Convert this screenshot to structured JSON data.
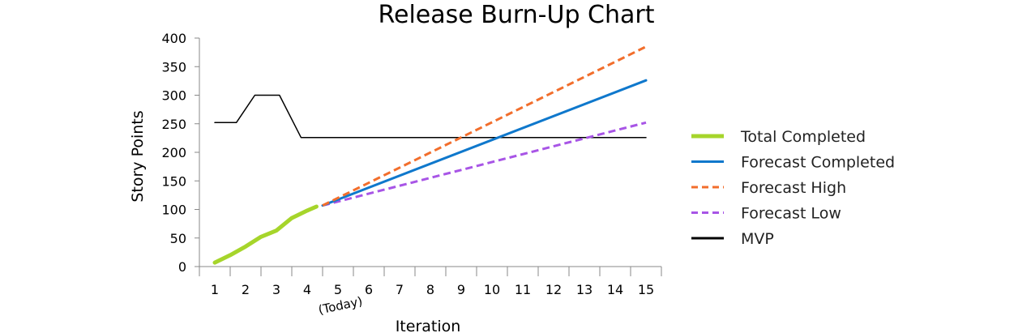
{
  "chart_data": {
    "type": "line",
    "title": "Release Burn-Up Chart",
    "xlabel": "Iteration",
    "ylabel": "Story Points",
    "x": [
      1,
      2,
      3,
      4,
      5,
      6,
      7,
      8,
      9,
      10,
      11,
      12,
      13,
      14,
      15
    ],
    "xlim": [
      0.5,
      15.5
    ],
    "ylim": [
      0,
      400
    ],
    "yticks": [
      0,
      50,
      100,
      150,
      200,
      250,
      300,
      350,
      400
    ],
    "grid": false,
    "legend_position": "right",
    "annotations": [
      {
        "x": 5,
        "text": "(Today)"
      }
    ],
    "series": [
      {
        "name": "Total Completed",
        "style": "solid-thick",
        "color": "#a6d52b",
        "points": [
          [
            1,
            7
          ],
          [
            1.5,
            20
          ],
          [
            2,
            35
          ],
          [
            2.5,
            52
          ],
          [
            3,
            63
          ],
          [
            3.5,
            85
          ],
          [
            4,
            98
          ],
          [
            4.3,
            105
          ]
        ]
      },
      {
        "name": "Forecast Completed",
        "style": "solid",
        "color": "#0f78cc",
        "points": [
          [
            4.5,
            107
          ],
          [
            15,
            326
          ]
        ]
      },
      {
        "name": "Forecast High",
        "style": "dashed",
        "color": "#f26e2c",
        "points": [
          [
            4.5,
            107
          ],
          [
            15,
            385
          ]
        ]
      },
      {
        "name": "Forecast Low",
        "style": "dashed",
        "color": "#a855e6",
        "points": [
          [
            4.5,
            107
          ],
          [
            15,
            252
          ]
        ]
      },
      {
        "name": "MVP",
        "style": "solid-thin",
        "color": "#000000",
        "points": [
          [
            1,
            252
          ],
          [
            1.7,
            252
          ],
          [
            2.3,
            300
          ],
          [
            3.1,
            300
          ],
          [
            3.8,
            226
          ],
          [
            15,
            226
          ]
        ]
      }
    ]
  }
}
